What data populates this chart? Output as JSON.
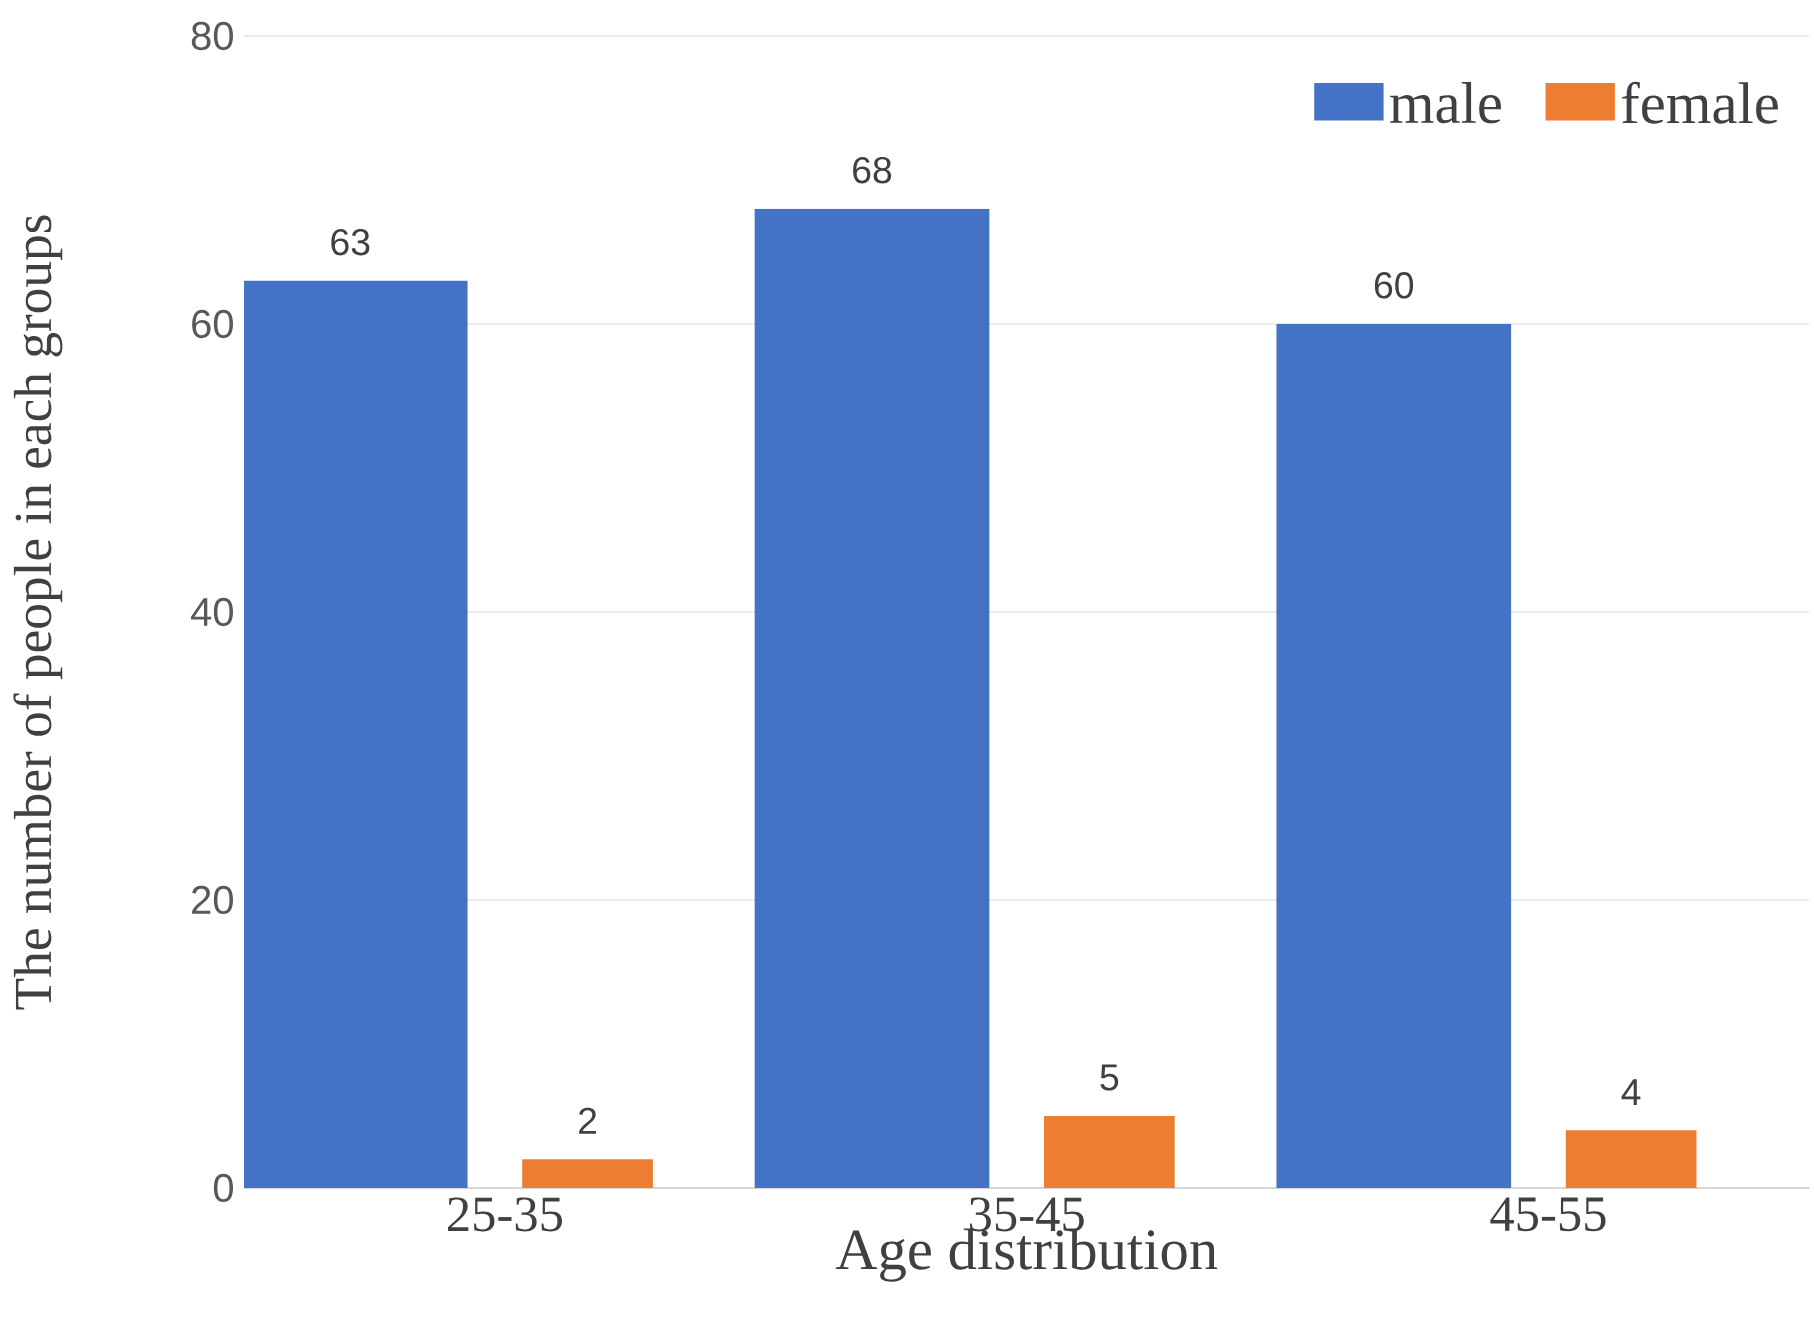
{
  "chart_data": {
    "type": "bar",
    "xlabel": "Age distribution",
    "ylabel": "The number of people in each groups",
    "categories": [
      "25-35",
      "35-45",
      "45-55"
    ],
    "series": [
      {
        "name": "male",
        "color": "#4472c4",
        "values": [
          63,
          68,
          60
        ]
      },
      {
        "name": "female",
        "color": "#ed7d31",
        "values": [
          2,
          5,
          4
        ]
      }
    ],
    "ylim": [
      0,
      80
    ],
    "yticks": [
      0,
      20,
      40,
      60,
      80
    ],
    "grid": "y",
    "legend": "top right",
    "data_labels": true
  }
}
